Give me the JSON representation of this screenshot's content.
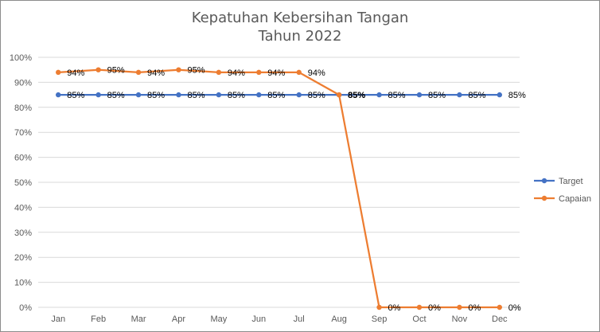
{
  "chart_data": {
    "type": "line",
    "title_line1": "Kepatuhan Kebersihan Tangan",
    "title_line2": "Tahun 2022",
    "categories": [
      "Jan",
      "Feb",
      "Mar",
      "Apr",
      "May",
      "Jun",
      "Jul",
      "Aug",
      "Sep",
      "Oct",
      "Nov",
      "Dec"
    ],
    "ylim": [
      0,
      100
    ],
    "yticks": [
      "0%",
      "10%",
      "20%",
      "30%",
      "40%",
      "50%",
      "60%",
      "70%",
      "80%",
      "90%",
      "100%"
    ],
    "grid": true,
    "legend_position": "right",
    "series": [
      {
        "name": "Target",
        "color": "#4472c4",
        "values": [
          85,
          85,
          85,
          85,
          85,
          85,
          85,
          85,
          85,
          85,
          85,
          85
        ],
        "labels": [
          "85%",
          "85%",
          "85%",
          "85%",
          "85%",
          "85%",
          "85%",
          "85%",
          "85%",
          "85%",
          "85%",
          "85%"
        ]
      },
      {
        "name": "Capaian",
        "color": "#ed7d31",
        "values": [
          94,
          95,
          94,
          95,
          94,
          94,
          94,
          85,
          0,
          0,
          0,
          0
        ],
        "labels": [
          "94%",
          "95%",
          "94%",
          "95%",
          "94%",
          "94%",
          "94%",
          "85%",
          "0%",
          "0%",
          "0%",
          "0%"
        ]
      }
    ]
  }
}
